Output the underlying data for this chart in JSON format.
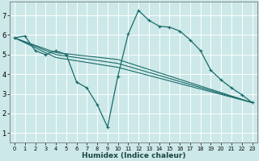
{
  "xlabel": "Humidex (Indice chaleur)",
  "bg_color": "#cce8e8",
  "grid_color": "#ffffff",
  "line_color": "#1a6b6b",
  "xlim": [
    -0.5,
    23.5
  ],
  "ylim": [
    0.5,
    7.7
  ],
  "xticks": [
    0,
    1,
    2,
    3,
    4,
    5,
    6,
    7,
    8,
    9,
    10,
    11,
    12,
    13,
    14,
    15,
    16,
    17,
    18,
    19,
    20,
    21,
    22,
    23
  ],
  "yticks": [
    1,
    2,
    3,
    4,
    5,
    6,
    7
  ],
  "series": [
    {
      "x": [
        0,
        1,
        2,
        3,
        4,
        5,
        6,
        7,
        8,
        9,
        10,
        11,
        12,
        13,
        14,
        15,
        16,
        17,
        18,
        19,
        20,
        21,
        22,
        23
      ],
      "y": [
        5.85,
        5.95,
        5.2,
        5.0,
        5.2,
        5.0,
        3.6,
        3.3,
        2.45,
        1.3,
        3.9,
        6.05,
        7.25,
        6.75,
        6.45,
        6.4,
        6.2,
        5.75,
        5.2,
        4.2,
        3.7,
        3.3,
        2.95,
        2.55
      ],
      "marker": true
    },
    {
      "x": [
        0,
        4,
        10,
        23
      ],
      "y": [
        5.85,
        5.1,
        4.75,
        2.55
      ],
      "marker": false
    },
    {
      "x": [
        0,
        4,
        10,
        23
      ],
      "y": [
        5.85,
        5.0,
        4.55,
        2.55
      ],
      "marker": false
    },
    {
      "x": [
        0,
        4,
        10,
        23
      ],
      "y": [
        5.85,
        4.85,
        4.35,
        2.55
      ],
      "marker": false
    }
  ]
}
